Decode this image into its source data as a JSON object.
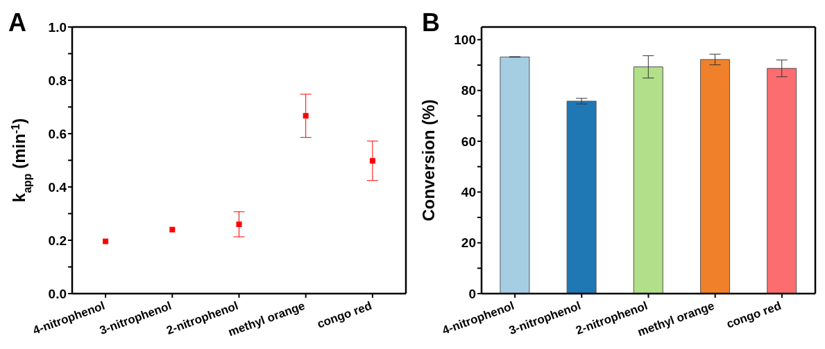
{
  "chart_data": [
    {
      "type": "scatter",
      "title": "A",
      "ylabel": "k$_{app}$ (min$^{-1}$)",
      "categories": [
        "4-nitrophenol",
        "3-nitrophenol",
        "2-nitrophenol",
        "methyl orange",
        "congo red"
      ],
      "values": [
        0.196,
        0.24,
        0.26,
        0.667,
        0.498
      ],
      "errors": [
        null,
        null,
        0.047,
        0.081,
        0.074
      ],
      "color": "#ff0000",
      "marker": "square",
      "ylim": [
        0,
        1
      ],
      "yticks": [
        {
          "value": 0,
          "label": "0.0"
        },
        {
          "value": 0.1,
          "label": null
        },
        {
          "value": 0.2,
          "label": "0.2"
        },
        {
          "value": 0.3,
          "label": null
        },
        {
          "value": 0.4,
          "label": "0.4"
        },
        {
          "value": 0.5,
          "label": null
        },
        {
          "value": 0.6,
          "label": "0.6"
        },
        {
          "value": 0.7,
          "label": null
        },
        {
          "value": 0.8,
          "label": "0.8"
        },
        {
          "value": 0.9,
          "label": null
        },
        {
          "value": 1,
          "label": "1.0"
        }
      ],
      "grid": false,
      "legend": false
    },
    {
      "type": "bar",
      "title": "B",
      "ylabel": "Conversion (%)",
      "categories": [
        "4-nitrophenol",
        "3-nitrophenol",
        "2-nitrophenol",
        "methyl orange",
        "congo red"
      ],
      "values": [
        93.2,
        75.8,
        89.3,
        92.2,
        88.7
      ],
      "errors": [
        0.1,
        1.1,
        4.4,
        2.1,
        3.3
      ],
      "colors": [
        "#a6cee3",
        "#1f78b4",
        "#b2df8a",
        "#f0812a",
        "#fb6d6f"
      ],
      "ylim": [
        0,
        105
      ],
      "yticks": [
        0,
        {
          "value": 10,
          "label": null
        },
        20,
        {
          "value": 30,
          "label": null
        },
        40,
        {
          "value": 50,
          "label": null
        },
        60,
        {
          "value": 70,
          "label": null
        },
        80,
        {
          "value": 90,
          "label": null
        },
        100
      ],
      "grid": false,
      "legend": false
    }
  ]
}
